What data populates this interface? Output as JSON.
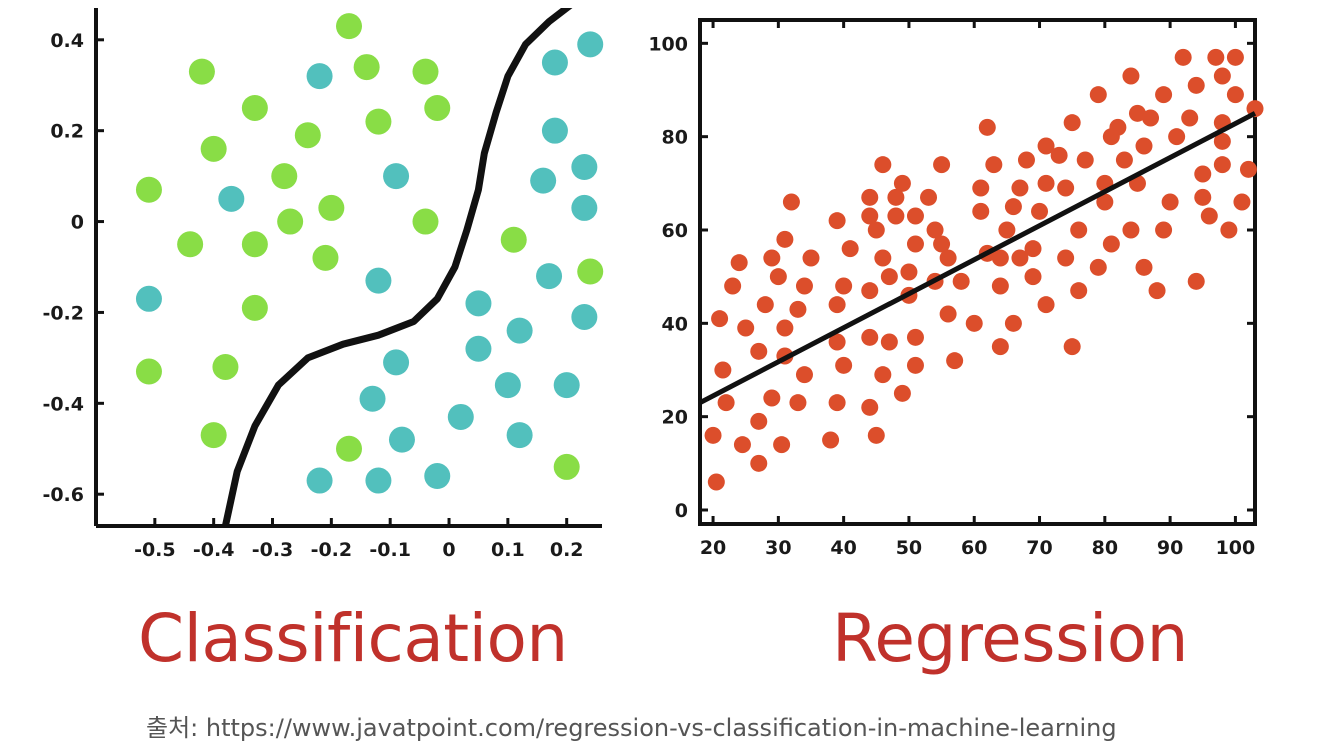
{
  "source_caption": "출처: https://www.javatpoint.com/regression-vs-classification-in-machine-learning",
  "colors": {
    "class_a": "#89dd46",
    "class_b": "#52c0bd",
    "regression_points": "#dc4e2b",
    "curve": "#111111",
    "title": "#c0312b"
  },
  "chart_data": [
    {
      "type": "scatter",
      "title": "Classification",
      "xlabel": "",
      "ylabel": "",
      "xlim": [
        -0.6,
        0.26
      ],
      "ylim": [
        -0.67,
        0.47
      ],
      "x_ticks": [
        -0.5,
        -0.4,
        -0.3,
        -0.2,
        -0.1,
        0,
        0.1,
        0.2
      ],
      "x_tick_labels": [
        "-0.5",
        "-0.4",
        "-0.3",
        "-0.2",
        "-0.1",
        "0",
        "0.1",
        "0.2"
      ],
      "y_ticks": [
        0.4,
        0.2,
        0,
        -0.2,
        -0.4,
        -0.6
      ],
      "y_tick_labels": [
        "0.4",
        "0.2",
        "0",
        "-0.2",
        "-0.4",
        "-0.6"
      ],
      "grid": false,
      "series": [
        {
          "color": "#89dd46",
          "points": [
            [
              -0.17,
              0.43
            ],
            [
              -0.42,
              0.33
            ],
            [
              -0.14,
              0.34
            ],
            [
              -0.04,
              0.33
            ],
            [
              -0.33,
              0.25
            ],
            [
              -0.02,
              0.25
            ],
            [
              -0.24,
              0.19
            ],
            [
              -0.12,
              0.22
            ],
            [
              -0.4,
              0.16
            ],
            [
              -0.28,
              0.1
            ],
            [
              -0.51,
              0.07
            ],
            [
              -0.27,
              0.0
            ],
            [
              -0.2,
              0.03
            ],
            [
              -0.04,
              0.0
            ],
            [
              -0.44,
              -0.05
            ],
            [
              -0.33,
              -0.05
            ],
            [
              -0.21,
              -0.08
            ],
            [
              0.11,
              -0.04
            ],
            [
              0.24,
              -0.11
            ],
            [
              -0.33,
              -0.19
            ],
            [
              -0.51,
              -0.33
            ],
            [
              -0.38,
              -0.32
            ],
            [
              -0.4,
              -0.47
            ],
            [
              -0.17,
              -0.5
            ],
            [
              0.2,
              -0.54
            ]
          ]
        },
        {
          "color": "#52c0bd",
          "points": [
            [
              -0.22,
              0.32
            ],
            [
              0.18,
              0.35
            ],
            [
              0.24,
              0.39
            ],
            [
              0.18,
              0.2
            ],
            [
              -0.09,
              0.1
            ],
            [
              0.23,
              0.12
            ],
            [
              0.16,
              0.09
            ],
            [
              -0.37,
              0.05
            ],
            [
              0.23,
              0.03
            ],
            [
              -0.12,
              -0.13
            ],
            [
              0.17,
              -0.12
            ],
            [
              -0.51,
              -0.17
            ],
            [
              0.05,
              -0.18
            ],
            [
              0.23,
              -0.21
            ],
            [
              0.12,
              -0.24
            ],
            [
              0.05,
              -0.28
            ],
            [
              -0.09,
              -0.31
            ],
            [
              0.1,
              -0.36
            ],
            [
              0.2,
              -0.36
            ],
            [
              -0.13,
              -0.39
            ],
            [
              0.02,
              -0.43
            ],
            [
              -0.08,
              -0.48
            ],
            [
              0.12,
              -0.47
            ],
            [
              -0.22,
              -0.57
            ],
            [
              -0.12,
              -0.57
            ],
            [
              -0.02,
              -0.56
            ]
          ]
        }
      ],
      "curve": [
        [
          -0.38,
          -0.67
        ],
        [
          -0.36,
          -0.55
        ],
        [
          -0.33,
          -0.45
        ],
        [
          -0.29,
          -0.36
        ],
        [
          -0.24,
          -0.3
        ],
        [
          -0.18,
          -0.27
        ],
        [
          -0.12,
          -0.25
        ],
        [
          -0.06,
          -0.22
        ],
        [
          -0.02,
          -0.17
        ],
        [
          0.01,
          -0.1
        ],
        [
          0.03,
          -0.02
        ],
        [
          0.05,
          0.07
        ],
        [
          0.06,
          0.15
        ],
        [
          0.08,
          0.24
        ],
        [
          0.1,
          0.32
        ],
        [
          0.13,
          0.39
        ],
        [
          0.17,
          0.44
        ],
        [
          0.21,
          0.48
        ]
      ]
    },
    {
      "type": "scatter",
      "title": "Regression",
      "xlabel": "",
      "ylabel": "",
      "xlim": [
        18,
        103
      ],
      "ylim": [
        -3,
        105
      ],
      "x_ticks": [
        20,
        30,
        40,
        50,
        60,
        70,
        80,
        90,
        100
      ],
      "x_tick_labels": [
        "20",
        "30",
        "40",
        "50",
        "60",
        "70",
        "80",
        "90",
        "100"
      ],
      "y_ticks": [
        0,
        20,
        40,
        60,
        80,
        100
      ],
      "y_tick_labels": [
        "0",
        "20",
        "40",
        "60",
        "80",
        "100"
      ],
      "grid": false,
      "series": [
        {
          "color": "#dc4e2b",
          "points": [
            [
              20,
              16
            ],
            [
              20.5,
              6
            ],
            [
              21,
              41
            ],
            [
              21.5,
              30
            ],
            [
              22,
              23
            ],
            [
              23,
              48
            ],
            [
              24,
              53
            ],
            [
              24.5,
              14
            ],
            [
              25,
              39
            ],
            [
              27,
              10
            ],
            [
              27,
              34
            ],
            [
              27,
              19
            ],
            [
              28,
              44
            ],
            [
              29,
              54
            ],
            [
              29,
              24
            ],
            [
              30,
              50
            ],
            [
              30.5,
              14
            ],
            [
              31,
              33
            ],
            [
              31,
              39
            ],
            [
              31,
              58
            ],
            [
              32,
              66
            ],
            [
              33,
              43
            ],
            [
              33,
              23
            ],
            [
              34,
              48
            ],
            [
              34,
              29
            ],
            [
              35,
              54
            ],
            [
              38,
              15
            ],
            [
              39,
              36
            ],
            [
              39,
              44
            ],
            [
              39,
              23
            ],
            [
              39,
              62
            ],
            [
              40,
              48
            ],
            [
              40,
              31
            ],
            [
              41,
              56
            ],
            [
              44,
              22
            ],
            [
              44,
              47
            ],
            [
              44,
              63
            ],
            [
              44,
              67
            ],
            [
              44,
              37
            ],
            [
              45,
              16
            ],
            [
              45,
              60
            ],
            [
              46,
              74
            ],
            [
              46,
              54
            ],
            [
              46,
              29
            ],
            [
              47,
              36
            ],
            [
              47,
              50
            ],
            [
              48,
              63
            ],
            [
              48,
              67
            ],
            [
              49,
              70
            ],
            [
              49,
              25
            ],
            [
              50,
              46
            ],
            [
              50,
              51
            ],
            [
              51,
              31
            ],
            [
              51,
              37
            ],
            [
              51,
              57
            ],
            [
              51,
              63
            ],
            [
              53,
              67
            ],
            [
              54,
              49
            ],
            [
              54,
              60
            ],
            [
              55,
              74
            ],
            [
              55,
              57
            ],
            [
              56,
              54
            ],
            [
              56,
              42
            ],
            [
              57,
              32
            ],
            [
              58,
              49
            ],
            [
              60,
              40
            ],
            [
              61,
              64
            ],
            [
              61,
              69
            ],
            [
              62,
              82
            ],
            [
              62,
              55
            ],
            [
              63,
              74
            ],
            [
              64,
              35
            ],
            [
              64,
              48
            ],
            [
              64,
              54
            ],
            [
              65,
              60
            ],
            [
              66,
              65
            ],
            [
              66,
              40
            ],
            [
              67,
              54
            ],
            [
              67,
              69
            ],
            [
              68,
              75
            ],
            [
              69,
              50
            ],
            [
              69,
              56
            ],
            [
              70,
              64
            ],
            [
              71,
              78
            ],
            [
              71,
              44
            ],
            [
              71,
              70
            ],
            [
              73,
              76
            ],
            [
              74,
              69
            ],
            [
              74,
              54
            ],
            [
              75,
              35
            ],
            [
              75,
              83
            ],
            [
              76,
              47
            ],
            [
              76,
              60
            ],
            [
              77,
              75
            ],
            [
              79,
              52
            ],
            [
              79,
              89
            ],
            [
              80,
              70
            ],
            [
              80,
              66
            ],
            [
              81,
              57
            ],
            [
              81,
              80
            ],
            [
              82,
              82
            ],
            [
              83,
              75
            ],
            [
              84,
              60
            ],
            [
              84,
              93
            ],
            [
              85,
              85
            ],
            [
              85,
              70
            ],
            [
              86,
              52
            ],
            [
              86,
              78
            ],
            [
              87,
              84
            ],
            [
              88,
              47
            ],
            [
              89,
              60
            ],
            [
              89,
              89
            ],
            [
              90,
              66
            ],
            [
              91,
              80
            ],
            [
              92,
              97
            ],
            [
              93,
              84
            ],
            [
              94,
              91
            ],
            [
              94,
              49
            ],
            [
              95,
              72
            ],
            [
              95,
              67
            ],
            [
              96,
              63
            ],
            [
              97,
              97
            ],
            [
              98,
              93
            ],
            [
              98,
              83
            ],
            [
              98,
              74
            ],
            [
              98,
              79
            ],
            [
              99,
              60
            ],
            [
              100,
              89
            ],
            [
              100,
              97
            ],
            [
              101,
              66
            ],
            [
              102,
              73
            ],
            [
              103,
              86
            ]
          ]
        }
      ],
      "line": [
        [
          18,
          23
        ],
        [
          103,
          85
        ]
      ]
    }
  ]
}
